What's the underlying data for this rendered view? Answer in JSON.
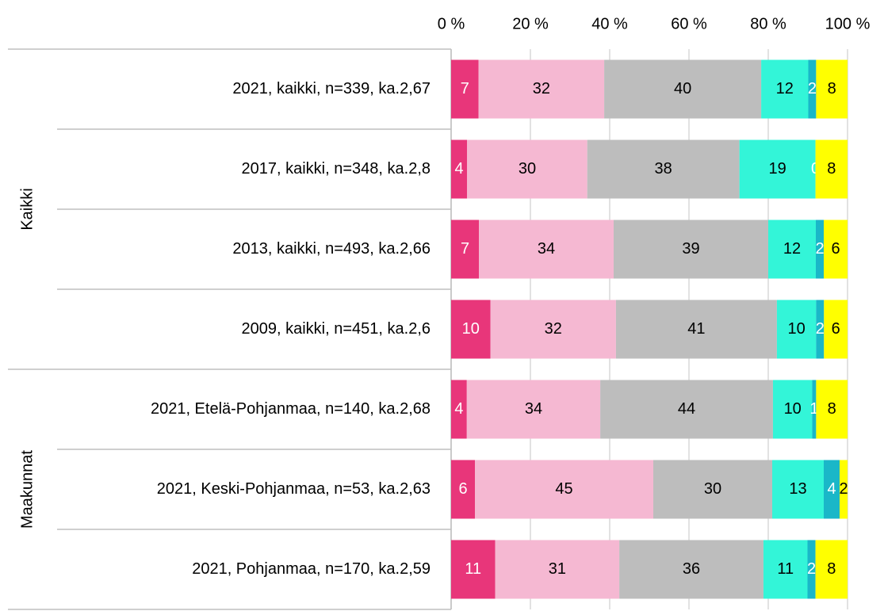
{
  "chart_data": {
    "type": "bar",
    "orientation": "horizontal",
    "stacking": "percent",
    "categories": [
      "2021, kaikki, n=339, ka.2,67",
      "2017, kaikki, n=348, ka.2,8",
      "2013, kaikki, n=493, ka.2,66",
      "2009, kaikki, n=451, ka.2,6",
      "2021, Etelä-Pohjanmaa, n=140, ka.2,68",
      "2021, Keski-Pohjanmaa, n=53, ka.2,63",
      "2021, Pohjanmaa, n=170, ka.2,59"
    ],
    "groups": [
      {
        "label": "Kaikki",
        "size": 4
      },
      {
        "label": "Maakunnat",
        "size": 3
      }
    ],
    "series": [
      {
        "color": "#e8367a",
        "label_color": "#ffffff",
        "values": [
          7,
          4,
          7,
          10,
          4,
          6,
          11
        ]
      },
      {
        "color": "#f5b8d2",
        "label_color": "#000000",
        "values": [
          32,
          30,
          34,
          32,
          34,
          45,
          31
        ]
      },
      {
        "color": "#bdbdbd",
        "label_color": "#000000",
        "values": [
          40,
          38,
          39,
          41,
          44,
          30,
          36
        ]
      },
      {
        "color": "#33f5d8",
        "label_color": "#000000",
        "values": [
          12,
          19,
          12,
          10,
          10,
          13,
          11
        ]
      },
      {
        "color": "#1ab7c8",
        "label_color": "#ffffff",
        "values": [
          2,
          0,
          2,
          2,
          1,
          4,
          2
        ]
      },
      {
        "color": "#ffff00",
        "label_color": "#000000",
        "values": [
          8,
          8,
          6,
          6,
          8,
          2,
          8
        ]
      }
    ],
    "xlim": [
      0,
      100
    ],
    "xticks": [
      {
        "value": 0,
        "label": "0 %"
      },
      {
        "value": 20,
        "label": "20 %"
      },
      {
        "value": 40,
        "label": "40 %"
      },
      {
        "value": 60,
        "label": "60 %"
      },
      {
        "value": 80,
        "label": "80 %"
      },
      {
        "value": 100,
        "label": "100 %"
      }
    ],
    "grid": true
  }
}
